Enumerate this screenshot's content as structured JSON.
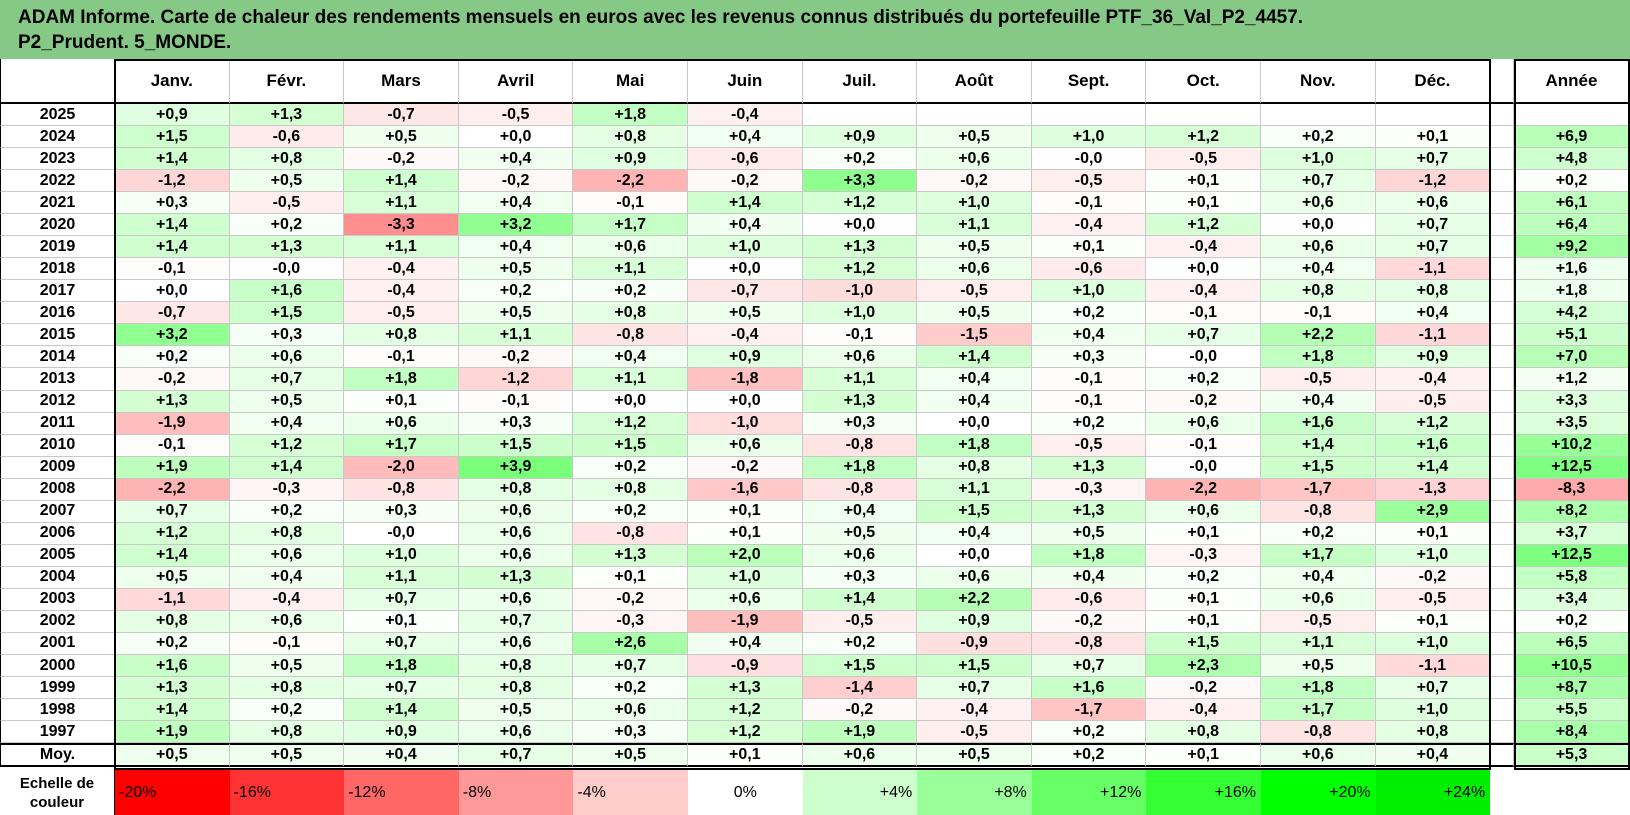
{
  "title": {
    "line1": "ADAM Informe. Carte de chaleur des rendements mensuels en euros avec les revenus connus distribués du portefeuille PTF_36_Val_P2_4457.",
    "line2": "P2_Prudent. 5_MONDE."
  },
  "chart_data": {
    "type": "heatmap",
    "columns": [
      "Janv.",
      "Févr.",
      "Mars",
      "Avril",
      "Mai",
      "Juin",
      "Juil.",
      "Août",
      "Sept.",
      "Oct.",
      "Nov.",
      "Déc."
    ],
    "year_header": "Année",
    "rows": [
      {
        "year": "2025",
        "values": [
          "+0,9",
          "+1,3",
          "-0,7",
          "-0,5",
          "+1,8",
          "-0,4",
          "",
          "",
          "",
          "",
          "",
          ""
        ],
        "annual": ""
      },
      {
        "year": "2024",
        "values": [
          "+1,5",
          "-0,6",
          "+0,5",
          "+0,0",
          "+0,8",
          "+0,4",
          "+0,9",
          "+0,5",
          "+1,0",
          "+1,2",
          "+0,2",
          "+0,1"
        ],
        "annual": "+6,9"
      },
      {
        "year": "2023",
        "values": [
          "+1,4",
          "+0,8",
          "-0,2",
          "+0,4",
          "+0,9",
          "-0,6",
          "+0,2",
          "+0,6",
          "-0,0",
          "-0,5",
          "+1,0",
          "+0,7"
        ],
        "annual": "+4,8"
      },
      {
        "year": "2022",
        "values": [
          "-1,2",
          "+0,5",
          "+1,4",
          "-0,2",
          "-2,2",
          "-0,2",
          "+3,3",
          "-0,2",
          "-0,5",
          "+0,1",
          "+0,7",
          "-1,2"
        ],
        "annual": "+0,2"
      },
      {
        "year": "2021",
        "values": [
          "+0,3",
          "-0,5",
          "+1,1",
          "+0,4",
          "-0,1",
          "+1,4",
          "+1,2",
          "+1,0",
          "-0,1",
          "+0,1",
          "+0,6",
          "+0,6"
        ],
        "annual": "+6,1"
      },
      {
        "year": "2020",
        "values": [
          "+1,4",
          "+0,2",
          "-3,3",
          "+3,2",
          "+1,7",
          "+0,4",
          "+0,0",
          "+1,1",
          "-0,4",
          "+1,2",
          "+0,0",
          "+0,7"
        ],
        "annual": "+6,4"
      },
      {
        "year": "2019",
        "values": [
          "+1,4",
          "+1,3",
          "+1,1",
          "+0,4",
          "+0,6",
          "+1,0",
          "+1,3",
          "+0,5",
          "+0,1",
          "-0,4",
          "+0,6",
          "+0,7"
        ],
        "annual": "+9,2"
      },
      {
        "year": "2018",
        "values": [
          "-0,1",
          "-0,0",
          "-0,4",
          "+0,5",
          "+1,1",
          "+0,0",
          "+1,2",
          "+0,6",
          "-0,6",
          "+0,0",
          "+0,4",
          "-1,1"
        ],
        "annual": "+1,6"
      },
      {
        "year": "2017",
        "values": [
          "+0,0",
          "+1,6",
          "-0,4",
          "+0,2",
          "+0,2",
          "-0,7",
          "-1,0",
          "-0,5",
          "+1,0",
          "-0,4",
          "+0,8",
          "+0,8"
        ],
        "annual": "+1,8"
      },
      {
        "year": "2016",
        "values": [
          "-0,7",
          "+1,5",
          "-0,5",
          "+0,5",
          "+0,8",
          "+0,5",
          "+1,0",
          "+0,5",
          "+0,2",
          "-0,1",
          "-0,1",
          "+0,4"
        ],
        "annual": "+4,2"
      },
      {
        "year": "2015",
        "values": [
          "+3,2",
          "+0,3",
          "+0,8",
          "+1,1",
          "-0,8",
          "-0,4",
          "-0,1",
          "-1,5",
          "+0,4",
          "+0,7",
          "+2,2",
          "-1,1"
        ],
        "annual": "+5,1"
      },
      {
        "year": "2014",
        "values": [
          "+0,2",
          "+0,6",
          "-0,1",
          "-0,2",
          "+0,4",
          "+0,9",
          "+0,6",
          "+1,4",
          "+0,3",
          "-0,0",
          "+1,8",
          "+0,9"
        ],
        "annual": "+7,0"
      },
      {
        "year": "2013",
        "values": [
          "-0,2",
          "+0,7",
          "+1,8",
          "-1,2",
          "+1,1",
          "-1,8",
          "+1,1",
          "+0,4",
          "-0,1",
          "+0,2",
          "-0,5",
          "-0,4"
        ],
        "annual": "+1,2"
      },
      {
        "year": "2012",
        "values": [
          "+1,3",
          "+0,5",
          "+0,1",
          "-0,1",
          "+0,0",
          "+0,0",
          "+1,3",
          "+0,4",
          "-0,1",
          "-0,2",
          "+0,4",
          "-0,5"
        ],
        "annual": "+3,3"
      },
      {
        "year": "2011",
        "values": [
          "-1,9",
          "+0,4",
          "+0,6",
          "+0,3",
          "+1,2",
          "-1,0",
          "+0,3",
          "+0,0",
          "+0,2",
          "+0,6",
          "+1,6",
          "+1,2"
        ],
        "annual": "+3,5"
      },
      {
        "year": "2010",
        "values": [
          "-0,1",
          "+1,2",
          "+1,7",
          "+1,5",
          "+1,5",
          "+0,6",
          "-0,8",
          "+1,8",
          "-0,5",
          "-0,1",
          "+1,4",
          "+1,6"
        ],
        "annual": "+10,2"
      },
      {
        "year": "2009",
        "values": [
          "+1,9",
          "+1,4",
          "-2,0",
          "+3,9",
          "+0,2",
          "-0,2",
          "+1,8",
          "+0,8",
          "+1,3",
          "-0,0",
          "+1,5",
          "+1,4"
        ],
        "annual": "+12,5"
      },
      {
        "year": "2008",
        "values": [
          "-2,2",
          "-0,3",
          "-0,8",
          "+0,8",
          "+0,8",
          "-1,6",
          "-0,8",
          "+1,1",
          "-0,3",
          "-2,2",
          "-1,7",
          "-1,3"
        ],
        "annual": "-8,3"
      },
      {
        "year": "2007",
        "values": [
          "+0,7",
          "+0,2",
          "+0,3",
          "+0,6",
          "+0,2",
          "+0,1",
          "+0,4",
          "+1,5",
          "+1,3",
          "+0,6",
          "-0,8",
          "+2,9"
        ],
        "annual": "+8,2"
      },
      {
        "year": "2006",
        "values": [
          "+1,2",
          "+0,8",
          "-0,0",
          "+0,6",
          "-0,8",
          "+0,1",
          "+0,5",
          "+0,4",
          "+0,5",
          "+0,1",
          "+0,2",
          "+0,1"
        ],
        "annual": "+3,7"
      },
      {
        "year": "2005",
        "values": [
          "+1,4",
          "+0,6",
          "+1,0",
          "+0,6",
          "+1,3",
          "+2,0",
          "+0,6",
          "+0,0",
          "+1,8",
          "-0,3",
          "+1,7",
          "+1,0"
        ],
        "annual": "+12,5"
      },
      {
        "year": "2004",
        "values": [
          "+0,5",
          "+0,4",
          "+1,1",
          "+1,3",
          "+0,1",
          "+1,0",
          "+0,3",
          "+0,6",
          "+0,4",
          "+0,2",
          "+0,4",
          "-0,2"
        ],
        "annual": "+5,8"
      },
      {
        "year": "2003",
        "values": [
          "-1,1",
          "-0,4",
          "+0,7",
          "+0,6",
          "-0,2",
          "+0,6",
          "+1,4",
          "+2,2",
          "-0,6",
          "+0,1",
          "+0,6",
          "-0,5"
        ],
        "annual": "+3,4"
      },
      {
        "year": "2002",
        "values": [
          "+0,8",
          "+0,6",
          "+0,1",
          "+0,7",
          "-0,3",
          "-1,9",
          "-0,5",
          "+0,9",
          "-0,2",
          "+0,1",
          "-0,5",
          "+0,1"
        ],
        "annual": "+0,2"
      },
      {
        "year": "2001",
        "values": [
          "+0,2",
          "-0,1",
          "+0,7",
          "+0,6",
          "+2,6",
          "+0,4",
          "+0,2",
          "-0,9",
          "-0,8",
          "+1,5",
          "+1,1",
          "+1,0"
        ],
        "annual": "+6,5"
      },
      {
        "year": "2000",
        "values": [
          "+1,6",
          "+0,5",
          "+1,8",
          "+0,8",
          "+0,7",
          "-0,9",
          "+1,5",
          "+1,5",
          "+0,7",
          "+2,3",
          "+0,5",
          "-1,1"
        ],
        "annual": "+10,5"
      },
      {
        "year": "1999",
        "values": [
          "+1,3",
          "+0,8",
          "+0,7",
          "+0,8",
          "+0,2",
          "+1,3",
          "-1,4",
          "+0,7",
          "+1,6",
          "-0,2",
          "+1,8",
          "+0,7"
        ],
        "annual": "+8,7"
      },
      {
        "year": "1998",
        "values": [
          "+1,4",
          "+0,2",
          "+1,4",
          "+0,5",
          "+0,6",
          "+1,2",
          "-0,2",
          "-0,4",
          "-1,7",
          "-0,4",
          "+1,7",
          "+1,0"
        ],
        "annual": "+5,5"
      },
      {
        "year": "1997",
        "values": [
          "+1,9",
          "+0,8",
          "+0,9",
          "+0,6",
          "+0,3",
          "+1,2",
          "+1,9",
          "-0,5",
          "+0,2",
          "+0,8",
          "-0,8",
          "+0,8"
        ],
        "annual": "+8,4"
      }
    ],
    "average_row": {
      "label": "Moy.",
      "values": [
        "+0,5",
        "+0,5",
        "+0,4",
        "+0,7",
        "+0,5",
        "+0,1",
        "+0,6",
        "+0,5",
        "+0,2",
        "+0,1",
        "+0,6",
        "+0,4"
      ],
      "annual": "+5,3"
    },
    "color_scale": {
      "label_line1": "Echelle de",
      "label_line2": "couleur",
      "steps": [
        {
          "label": "-20%",
          "color": "#ff0000"
        },
        {
          "label": "-16%",
          "color": "#ff3333"
        },
        {
          "label": "-12%",
          "color": "#ff6666"
        },
        {
          "label": "-8%",
          "color": "#ff9999"
        },
        {
          "label": "-4%",
          "color": "#ffcccc"
        },
        {
          "label": "0%",
          "color": "#ffffff"
        },
        {
          "label": "+4%",
          "color": "#ccffcc"
        },
        {
          "label": "+8%",
          "color": "#99ff99"
        },
        {
          "label": "+12%",
          "color": "#66ff66"
        },
        {
          "label": "+16%",
          "color": "#33ff33"
        },
        {
          "label": "+20%",
          "color": "#00ff00"
        },
        {
          "label": "+24%",
          "color": "#00ee00"
        }
      ]
    },
    "colors": {
      "title_background": "#86c986",
      "negative": "#ff0000",
      "positive": "#00ff00",
      "neutral": "#ffffff"
    }
  }
}
